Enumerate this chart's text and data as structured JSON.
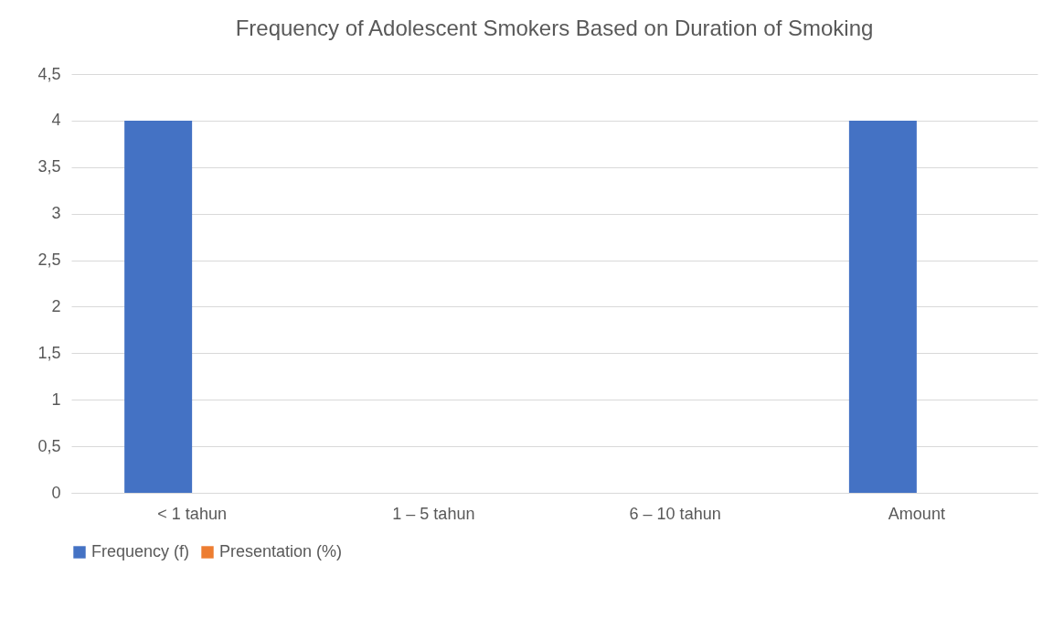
{
  "chart_data": {
    "type": "bar",
    "title": "Frequency of Adolescent Smokers Based on Duration of Smoking",
    "categories": [
      "< 1 tahun",
      "1 – 5 tahun",
      "6 – 10 tahun",
      "Amount"
    ],
    "series": [
      {
        "name": "Frequency (f)",
        "color": "#4472c4",
        "values": [
          4,
          0,
          0,
          4
        ]
      },
      {
        "name": "Presentation (%)",
        "color": "#ed7d31",
        "values": [
          null,
          0,
          0,
          null
        ]
      }
    ],
    "ylim": [
      0,
      4.5
    ],
    "yticks": [
      0,
      {
        "value": 0.5,
        "label": "0,5"
      },
      1,
      {
        "value": 1.5,
        "label": "1,5"
      },
      2,
      {
        "value": 2.5,
        "label": "2,5"
      },
      3,
      {
        "value": 3.5,
        "label": "3,5"
      },
      4,
      {
        "value": 4.5,
        "label": "4,5"
      }
    ],
    "grid": "y",
    "legend": "bottom"
  }
}
